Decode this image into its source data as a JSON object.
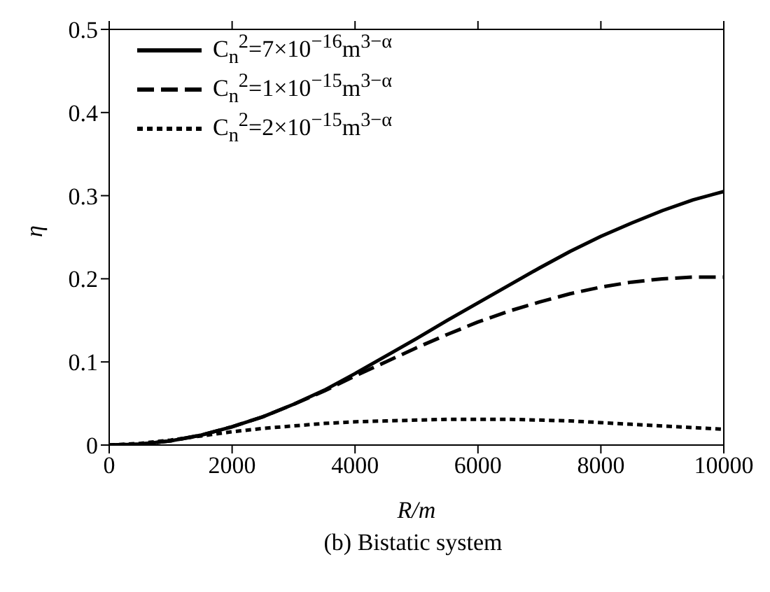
{
  "chart_data": {
    "type": "line",
    "xlabel": "R/m",
    "ylabel": "η",
    "annotations": [
      "(b) Bistatic system"
    ],
    "x": [
      0,
      500,
      1000,
      1500,
      2000,
      2500,
      3000,
      3500,
      4000,
      4500,
      5000,
      5500,
      6000,
      6500,
      7000,
      7500,
      8000,
      8500,
      9000,
      9500,
      10000
    ],
    "series": [
      {
        "name": "C$_{n}$$^{2}$=7×10$^{−16}$m$^{3−α}$",
        "color": "#000000",
        "line_style": "solid",
        "values": [
          0,
          0.001,
          0.005,
          0.012,
          0.022,
          0.034,
          0.049,
          0.066,
          0.086,
          0.107,
          0.128,
          0.15,
          0.171,
          0.192,
          0.213,
          0.233,
          0.251,
          0.267,
          0.282,
          0.295,
          0.305
        ]
      },
      {
        "name": "C$_{n}$$^{2}$=1×10$^{−15}$m$^{3−α}$",
        "color": "#000000",
        "line_style": "dashed",
        "values": [
          0,
          0.001,
          0.005,
          0.012,
          0.022,
          0.034,
          0.049,
          0.065,
          0.083,
          0.1,
          0.117,
          0.133,
          0.148,
          0.161,
          0.172,
          0.182,
          0.19,
          0.196,
          0.2,
          0.202,
          0.202
        ]
      },
      {
        "name": "C$_{n}$$^{2}$=2×10$^{−15}$m$^{3−α}$",
        "color": "#000000",
        "line_style": "dotted",
        "values": [
          0,
          0.002,
          0.006,
          0.011,
          0.016,
          0.02,
          0.023,
          0.026,
          0.028,
          0.029,
          0.03,
          0.031,
          0.031,
          0.031,
          0.03,
          0.029,
          0.027,
          0.025,
          0.023,
          0.021,
          0.019
        ]
      }
    ],
    "xlim": [
      0,
      10000
    ],
    "xticks": [
      0,
      2000,
      4000,
      6000,
      8000,
      10000
    ],
    "ylim": [
      0,
      0.5
    ],
    "yticks": [
      0,
      0.1,
      0.2,
      0.3,
      0.4,
      0.5
    ],
    "grid": false,
    "legend": "top left",
    "marker": "none"
  }
}
